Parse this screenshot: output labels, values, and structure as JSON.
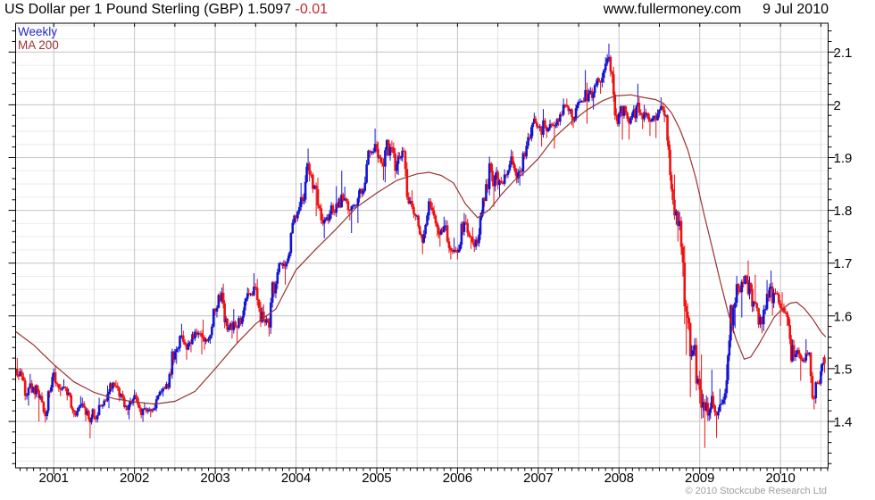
{
  "header": {
    "title": "US Dollar per 1 Pound Sterling (GBP) 1.5097",
    "change": "-0.01",
    "site": "www.fullermoney.com",
    "date": "9 Jul 2010"
  },
  "legend": {
    "series1": "Weekly",
    "series2": "MA 200"
  },
  "footer": {
    "copyright": "© 2010 Stockcube Research Ltd"
  },
  "chart_data": {
    "type": "candlestick",
    "title": "US Dollar per 1 Pound Sterling (GBP)",
    "timeframe": "Weekly",
    "overlay": "MA 200",
    "last_price": 1.5097,
    "change": -0.01,
    "x_range": [
      2000.53,
      2010.6
    ],
    "y_range": [
      1.31,
      2.155
    ],
    "grid": {
      "y_major_step": 0.1,
      "y_minor_step": 0.025,
      "x_major_step_years": 1,
      "x_minor_step_years": 0.5
    },
    "y_axis": {
      "ticks": [
        2.1,
        2.0,
        1.9,
        1.8,
        1.7,
        1.6,
        1.5,
        1.4
      ],
      "labels": [
        "2.1",
        "2",
        "1.9",
        "1.8",
        "1.7",
        "1.6",
        "1.5",
        "1.4"
      ],
      "tick_step": 0.02
    },
    "x_axis": {
      "years": [
        2001,
        2002,
        2003,
        2004,
        2005,
        2006,
        2007,
        2008,
        2009,
        2010
      ]
    },
    "colors": {
      "up": "#1414d2",
      "down": "#ee1111",
      "ma": "#993333",
      "grid_major": "#c4c4c4",
      "grid_minor_h": "#ebebeb",
      "grid_minor_v": "#dedede",
      "frame": "#000000",
      "label": "#000000"
    },
    "price_monthly": {
      "comment": "weekly GBPUSD bars Jul-2000..Jul-2010 read from chart, condensed per month as [high, low, close]",
      "start": {
        "t": 2000.53,
        "close": 1.5
      },
      "months": [
        [
          1.52,
          1.478,
          1.495
        ],
        [
          1.5,
          1.44,
          1.45
        ],
        [
          1.49,
          1.43,
          1.465
        ],
        [
          1.47,
          1.4,
          1.448
        ],
        [
          1.455,
          1.398,
          1.42
        ],
        [
          1.5,
          1.415,
          1.493
        ],
        [
          1.505,
          1.448,
          1.46
        ],
        [
          1.48,
          1.44,
          1.45
        ],
        [
          1.462,
          1.408,
          1.418
        ],
        [
          1.448,
          1.408,
          1.432
        ],
        [
          1.445,
          1.4,
          1.42
        ],
        [
          1.425,
          1.368,
          1.408
        ],
        [
          1.445,
          1.398,
          1.43
        ],
        [
          1.468,
          1.424,
          1.452
        ],
        [
          1.475,
          1.425,
          1.468
        ],
        [
          1.478,
          1.438,
          1.452
        ],
        [
          1.458,
          1.412,
          1.422
        ],
        [
          1.46,
          1.404,
          1.45
        ],
        [
          1.455,
          1.406,
          1.412
        ],
        [
          1.435,
          1.399,
          1.421
        ],
        [
          1.435,
          1.408,
          1.425
        ],
        [
          1.462,
          1.419,
          1.457
        ],
        [
          1.475,
          1.447,
          1.464
        ],
        [
          1.538,
          1.461,
          1.532
        ],
        [
          1.585,
          1.509,
          1.563
        ],
        [
          1.572,
          1.517,
          1.548
        ],
        [
          1.575,
          1.531,
          1.57
        ],
        [
          1.576,
          1.527,
          1.56
        ],
        [
          1.593,
          1.536,
          1.556
        ],
        [
          1.615,
          1.547,
          1.608
        ],
        [
          1.654,
          1.597,
          1.644
        ],
        [
          1.661,
          1.569,
          1.578
        ],
        [
          1.613,
          1.557,
          1.58
        ],
        [
          1.6,
          1.549,
          1.597
        ],
        [
          1.654,
          1.589,
          1.642
        ],
        [
          1.681,
          1.637,
          1.653
        ],
        [
          1.67,
          1.579,
          1.608
        ],
        [
          1.622,
          1.561,
          1.578
        ],
        [
          1.666,
          1.566,
          1.661
        ],
        [
          1.702,
          1.651,
          1.695
        ],
        [
          1.722,
          1.659,
          1.719
        ],
        [
          1.792,
          1.713,
          1.785
        ],
        [
          1.852,
          1.779,
          1.82
        ],
        [
          1.917,
          1.811,
          1.868
        ],
        [
          1.875,
          1.789,
          1.84
        ],
        [
          1.862,
          1.771,
          1.775
        ],
        [
          1.8,
          1.747,
          1.793
        ],
        [
          1.846,
          1.784,
          1.813
        ],
        [
          1.875,
          1.804,
          1.819
        ],
        [
          1.845,
          1.781,
          1.8
        ],
        [
          1.812,
          1.757,
          1.808
        ],
        [
          1.842,
          1.776,
          1.837
        ],
        [
          1.915,
          1.834,
          1.91
        ],
        [
          1.955,
          1.904,
          1.916
        ],
        [
          1.93,
          1.857,
          1.883
        ],
        [
          1.935,
          1.853,
          1.92
        ],
        [
          1.932,
          1.861,
          1.888
        ],
        [
          1.92,
          1.867,
          1.912
        ],
        [
          1.915,
          1.811,
          1.818
        ],
        [
          1.838,
          1.781,
          1.79
        ],
        [
          1.792,
          1.717,
          1.755
        ],
        [
          1.823,
          1.747,
          1.805
        ],
        [
          1.815,
          1.751,
          1.768
        ],
        [
          1.788,
          1.731,
          1.77
        ],
        [
          1.782,
          1.707,
          1.724
        ],
        [
          1.748,
          1.707,
          1.72
        ],
        [
          1.795,
          1.721,
          1.778
        ],
        [
          1.792,
          1.727,
          1.75
        ],
        [
          1.768,
          1.721,
          1.738
        ],
        [
          1.825,
          1.731,
          1.818
        ],
        [
          1.902,
          1.817,
          1.875
        ],
        [
          1.888,
          1.807,
          1.848
        ],
        [
          1.878,
          1.827,
          1.868
        ],
        [
          1.915,
          1.861,
          1.902
        ],
        [
          1.912,
          1.851,
          1.872
        ],
        [
          1.912,
          1.847,
          1.902
        ],
        [
          1.962,
          1.897,
          1.958
        ],
        [
          1.985,
          1.941,
          1.958
        ],
        [
          1.992,
          1.921,
          1.958
        ],
        [
          1.972,
          1.937,
          1.962
        ],
        [
          1.975,
          1.917,
          1.968
        ],
        [
          2.012,
          1.961,
          2.0
        ],
        [
          2.012,
          1.961,
          1.977
        ],
        [
          2.01,
          1.956,
          2.006
        ],
        [
          2.066,
          2.004,
          2.028
        ],
        [
          2.042,
          1.964,
          2.013
        ],
        [
          2.052,
          1.991,
          2.044
        ],
        [
          2.09,
          2.021,
          2.078
        ],
        [
          2.116,
          2.041,
          2.058
        ],
        [
          2.072,
          1.959,
          1.984
        ],
        [
          1.999,
          1.934,
          1.985
        ],
        [
          1.988,
          1.934,
          1.985
        ],
        [
          2.04,
          1.967,
          1.985
        ],
        [
          2.0,
          1.954,
          1.98
        ],
        [
          1.985,
          1.941,
          1.975
        ],
        [
          1.992,
          1.937,
          1.991
        ],
        [
          2.014,
          1.967,
          1.98
        ],
        [
          1.982,
          1.811,
          1.82
        ],
        [
          1.868,
          1.741,
          1.78
        ],
        [
          1.788,
          1.526,
          1.608
        ],
        [
          1.624,
          1.446,
          1.535
        ],
        [
          1.558,
          1.434,
          1.46
        ],
        [
          1.527,
          1.35,
          1.435
        ],
        [
          1.498,
          1.401,
          1.43
        ],
        [
          1.462,
          1.369,
          1.432
        ],
        [
          1.508,
          1.431,
          1.478
        ],
        [
          1.622,
          1.471,
          1.615
        ],
        [
          1.676,
          1.577,
          1.645
        ],
        [
          1.678,
          1.597,
          1.668
        ],
        [
          1.705,
          1.607,
          1.627
        ],
        [
          1.678,
          1.577,
          1.598
        ],
        [
          1.668,
          1.567,
          1.642
        ],
        [
          1.686,
          1.601,
          1.644
        ],
        [
          1.652,
          1.581,
          1.615
        ],
        [
          1.645,
          1.581,
          1.598
        ],
        [
          1.602,
          1.511,
          1.522
        ],
        [
          1.54,
          1.477,
          1.518
        ],
        [
          1.556,
          1.511,
          1.527
        ],
        [
          1.532,
          1.423,
          1.444
        ],
        [
          1.508,
          1.434,
          1.495
        ],
        [
          1.522,
          1.487,
          1.51
        ]
      ],
      "last_bar": {
        "open": 1.5215,
        "high": 1.526,
        "low": 1.492,
        "close": 1.5097
      }
    },
    "ma_200": [
      [
        2000.53,
        1.57
      ],
      [
        2000.75,
        1.545
      ],
      [
        2001.0,
        1.508
      ],
      [
        2001.25,
        1.475
      ],
      [
        2001.5,
        1.455
      ],
      [
        2001.75,
        1.443
      ],
      [
        2002.0,
        1.437
      ],
      [
        2002.25,
        1.433
      ],
      [
        2002.5,
        1.438
      ],
      [
        2002.75,
        1.457
      ],
      [
        2003.0,
        1.5
      ],
      [
        2003.25,
        1.545
      ],
      [
        2003.5,
        1.585
      ],
      [
        2003.75,
        1.613
      ],
      [
        2004.0,
        1.687
      ],
      [
        2004.25,
        1.727
      ],
      [
        2004.5,
        1.765
      ],
      [
        2004.75,
        1.806
      ],
      [
        2005.0,
        1.833
      ],
      [
        2005.25,
        1.857
      ],
      [
        2005.5,
        1.869
      ],
      [
        2005.65,
        1.872
      ],
      [
        2005.8,
        1.866
      ],
      [
        2005.95,
        1.852
      ],
      [
        2006.1,
        1.812
      ],
      [
        2006.25,
        1.786
      ],
      [
        2006.4,
        1.802
      ],
      [
        2006.55,
        1.831
      ],
      [
        2006.7,
        1.856
      ],
      [
        2006.85,
        1.875
      ],
      [
        2007.0,
        1.898
      ],
      [
        2007.2,
        1.938
      ],
      [
        2007.4,
        1.966
      ],
      [
        2007.6,
        1.99
      ],
      [
        2007.8,
        2.008
      ],
      [
        2007.95,
        2.017
      ],
      [
        2008.15,
        2.019
      ],
      [
        2008.3,
        2.014
      ],
      [
        2008.45,
        2.01
      ],
      [
        2008.55,
        2.003
      ],
      [
        2008.65,
        1.985
      ],
      [
        2008.75,
        1.955
      ],
      [
        2008.85,
        1.915
      ],
      [
        2008.95,
        1.862
      ],
      [
        2009.05,
        1.795
      ],
      [
        2009.15,
        1.732
      ],
      [
        2009.25,
        1.668
      ],
      [
        2009.35,
        1.607
      ],
      [
        2009.45,
        1.556
      ],
      [
        2009.55,
        1.518
      ],
      [
        2009.63,
        1.522
      ],
      [
        2009.72,
        1.543
      ],
      [
        2009.82,
        1.57
      ],
      [
        2009.92,
        1.597
      ],
      [
        2010.02,
        1.613
      ],
      [
        2010.12,
        1.624
      ],
      [
        2010.2,
        1.626
      ],
      [
        2010.3,
        1.613
      ],
      [
        2010.4,
        1.594
      ],
      [
        2010.5,
        1.57
      ],
      [
        2010.56,
        1.56
      ]
    ]
  }
}
